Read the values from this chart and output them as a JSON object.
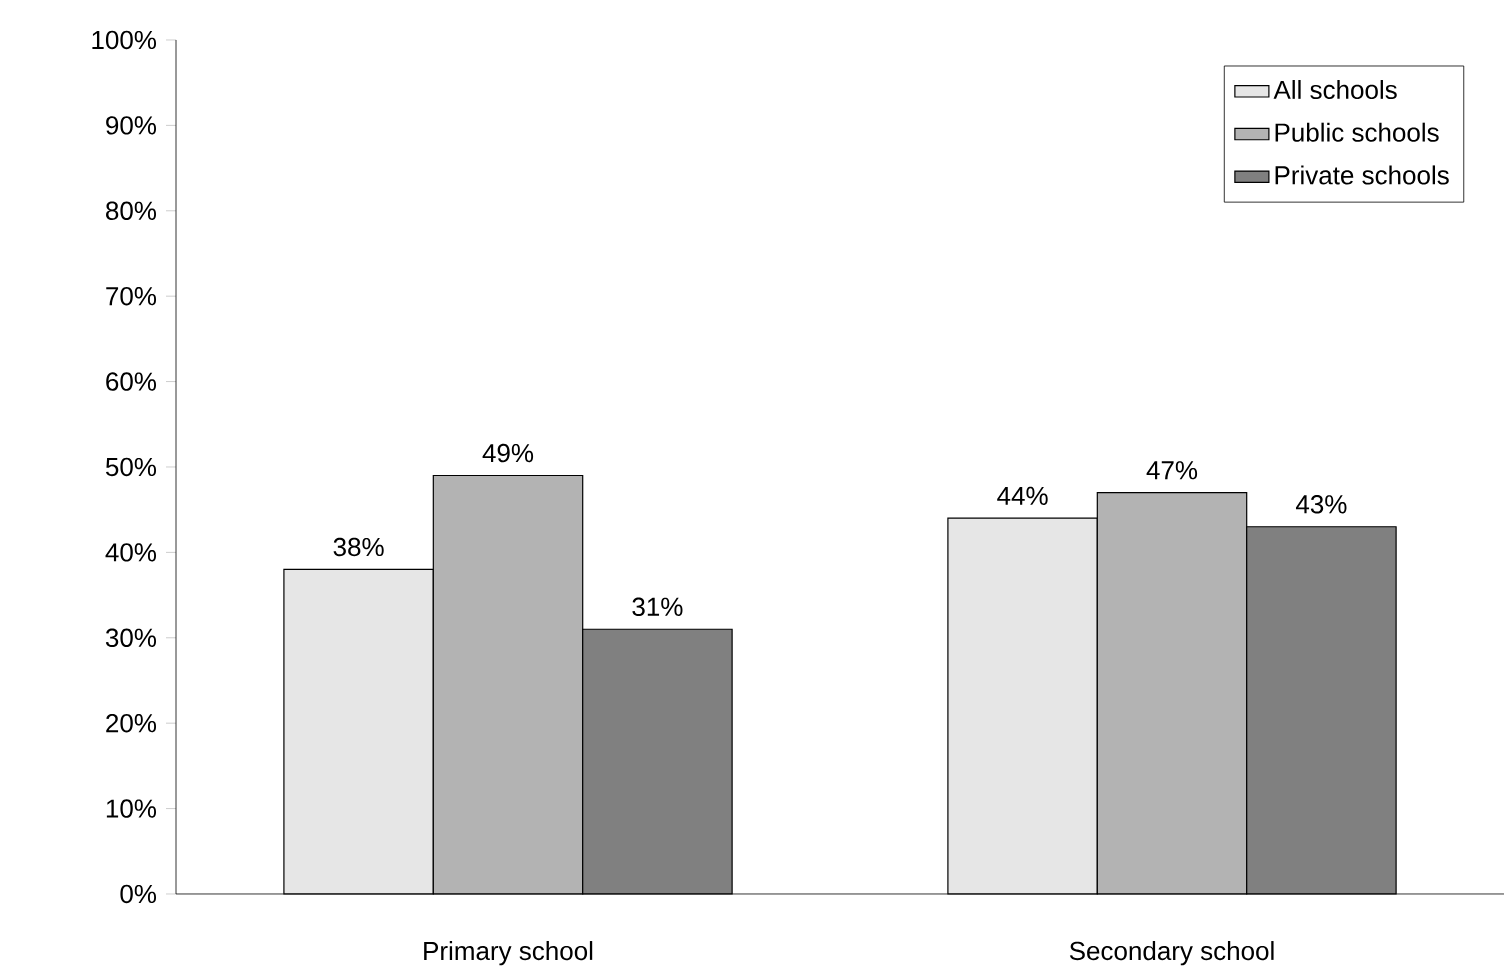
{
  "chart_data": {
    "type": "bar",
    "categories": [
      "Primary school",
      "Secondary  school"
    ],
    "series": [
      {
        "name": "All schools",
        "color": "#e6e6e6",
        "values": [
          38,
          44
        ],
        "value_labels": [
          "38%",
          "44%"
        ]
      },
      {
        "name": "Public schools",
        "color": "#b3b3b3",
        "values": [
          49,
          47
        ],
        "value_labels": [
          "49%",
          "47%"
        ]
      },
      {
        "name": "Private schools",
        "color": "#808080",
        "values": [
          31,
          43
        ],
        "value_labels": [
          "31%",
          "43%"
        ]
      }
    ],
    "ylim": [
      0,
      100
    ],
    "yticks": [
      {
        "value": 0,
        "label": "0%"
      },
      {
        "value": 10,
        "label": "10%"
      },
      {
        "value": 20,
        "label": "20%"
      },
      {
        "value": 30,
        "label": "30%"
      },
      {
        "value": 40,
        "label": "40%"
      },
      {
        "value": 50,
        "label": "50%"
      },
      {
        "value": 60,
        "label": "60%"
      },
      {
        "value": 70,
        "label": "70%"
      },
      {
        "value": 80,
        "label": "80%"
      },
      {
        "value": 90,
        "label": "90%"
      },
      {
        "value": 100,
        "label": "100%"
      }
    ],
    "grid": false,
    "legend": "top right"
  }
}
